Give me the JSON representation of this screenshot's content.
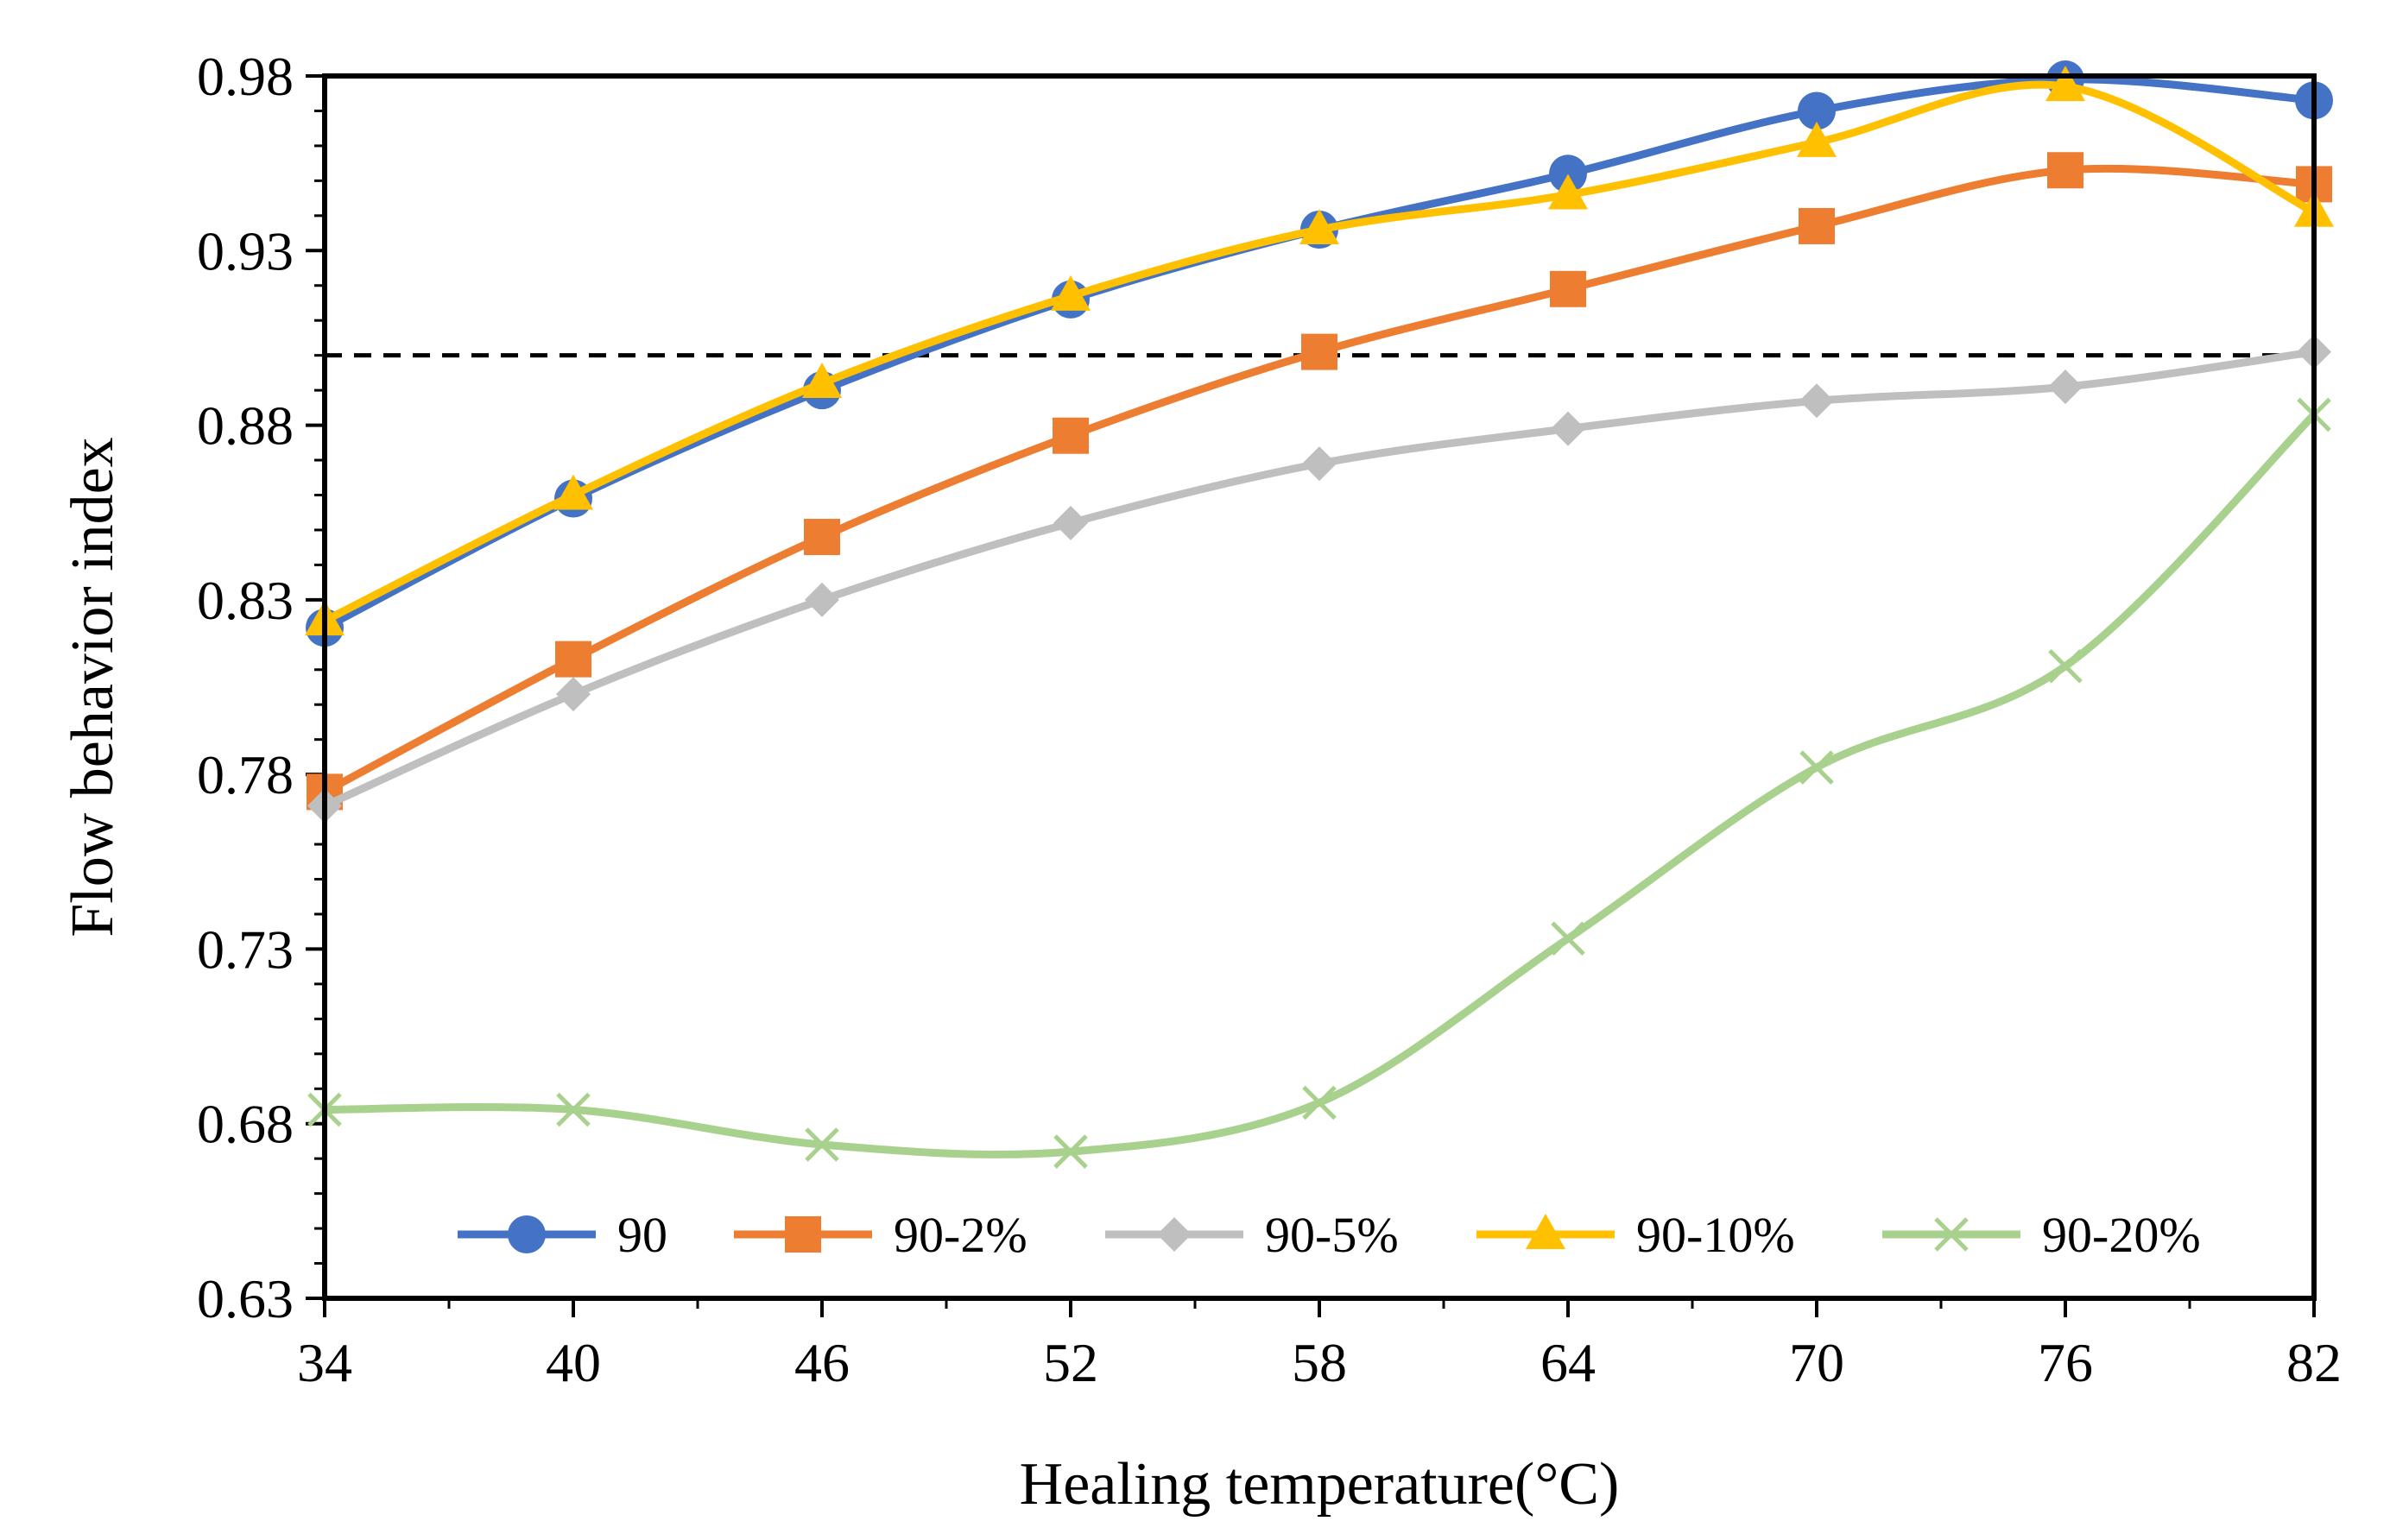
{
  "chart_data": {
    "type": "line",
    "title": "",
    "xlabel": "Healing temperature(°C)",
    "ylabel": "Flow behavior index",
    "x": [
      34,
      40,
      46,
      52,
      58,
      64,
      70,
      76,
      82
    ],
    "x_tick_labels": [
      "34",
      "40",
      "46",
      "52",
      "58",
      "64",
      "70",
      "76",
      "82"
    ],
    "y_tick_labels": [
      "0.63",
      "0.68",
      "0.73",
      "0.78",
      "0.83",
      "0.88",
      "0.93",
      "0.98"
    ],
    "y_ticks": [
      0.63,
      0.68,
      0.73,
      0.78,
      0.83,
      0.88,
      0.93,
      0.98
    ],
    "xlim": [
      34,
      82
    ],
    "ylim": [
      0.63,
      0.98
    ],
    "grid": false,
    "legend_position": "bottom-inside",
    "reference_line": {
      "y": 0.9,
      "style": "dashed",
      "color": "#000000"
    },
    "series": [
      {
        "name": "90",
        "color": "#4472C4",
        "marker": "circle",
        "values": [
          0.822,
          0.859,
          0.89,
          0.916,
          0.936,
          0.952,
          0.97,
          0.979,
          0.973
        ]
      },
      {
        "name": "90-2%",
        "color": "#ED7D31",
        "marker": "square",
        "values": [
          0.775,
          0.813,
          0.848,
          0.877,
          0.901,
          0.919,
          0.937,
          0.953,
          0.949
        ]
      },
      {
        "name": "90-5%",
        "color": "#BFBFBF",
        "marker": "diamond",
        "values": [
          0.771,
          0.803,
          0.83,
          0.852,
          0.869,
          0.879,
          0.887,
          0.891,
          0.901
        ]
      },
      {
        "name": "90-10%",
        "color": "#FFC000",
        "marker": "triangle",
        "values": [
          0.824,
          0.86,
          0.892,
          0.917,
          0.936,
          0.946,
          0.961,
          0.977,
          0.941
        ]
      },
      {
        "name": "90-20%",
        "color": "#A9D18E",
        "marker": "x",
        "values": [
          0.684,
          0.684,
          0.674,
          0.672,
          0.686,
          0.733,
          0.782,
          0.811,
          0.883
        ]
      }
    ]
  }
}
